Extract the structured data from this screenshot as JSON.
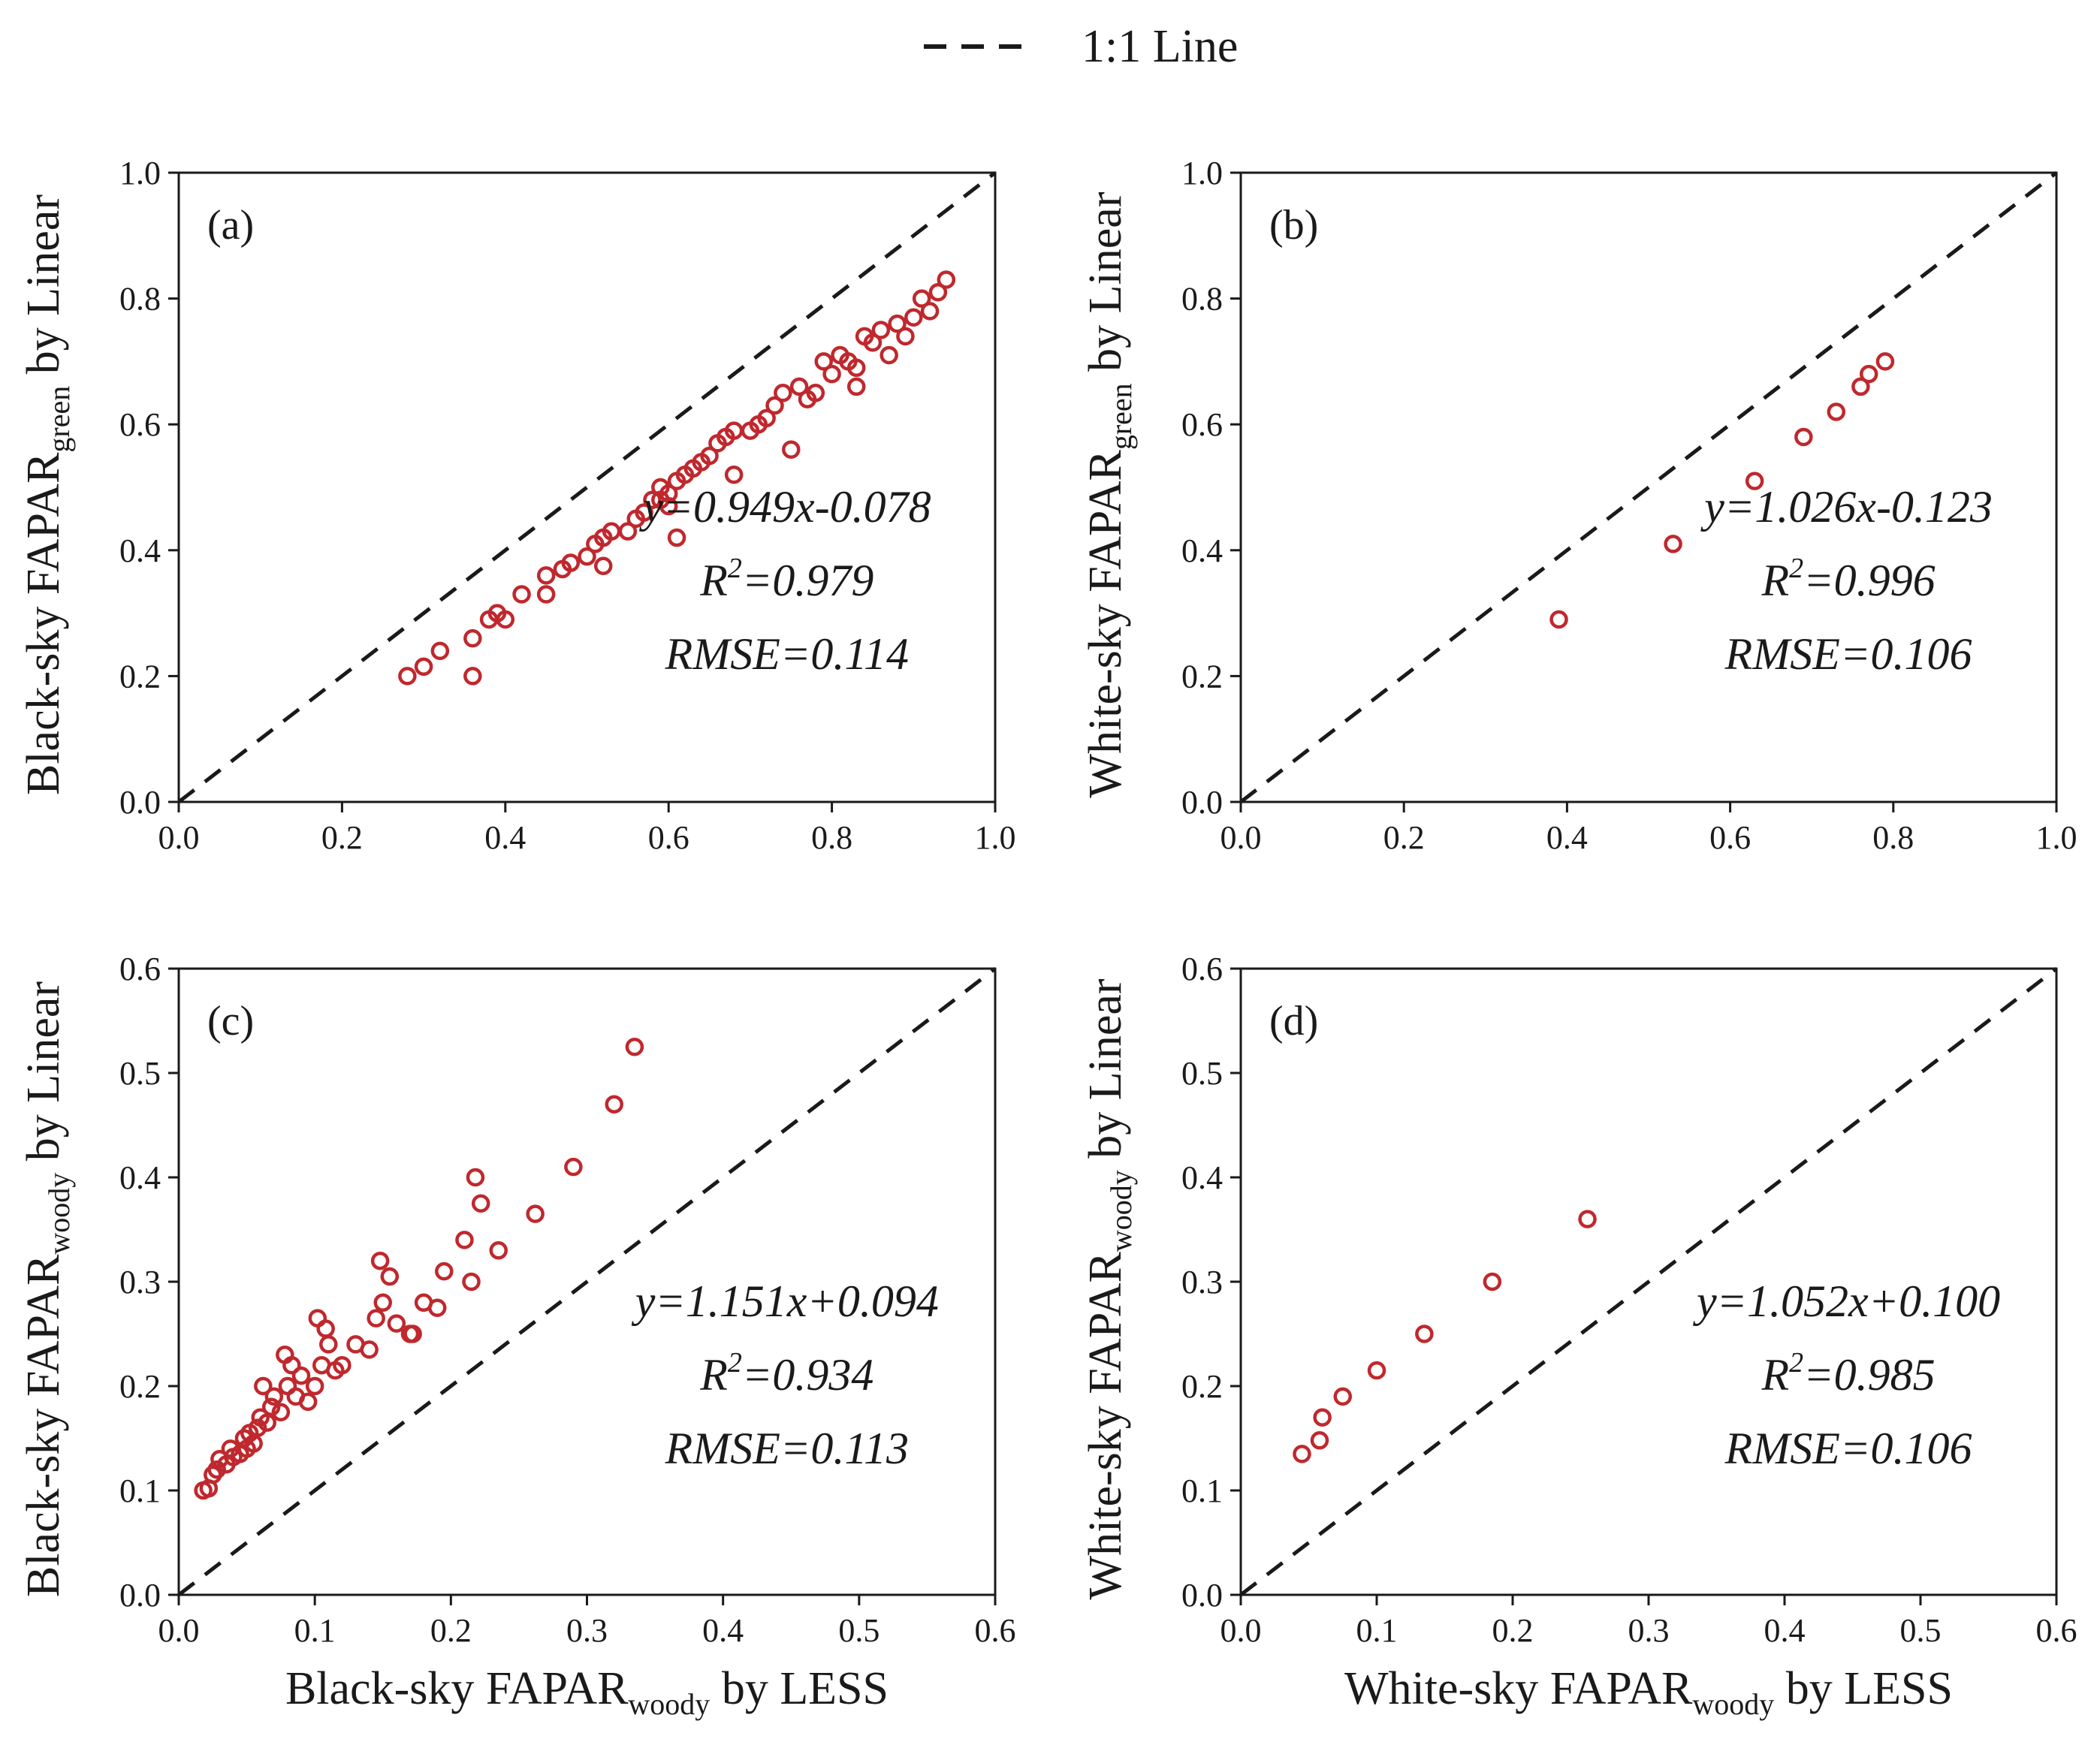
{
  "legend": {
    "label": "1:1 Line"
  },
  "colors": {
    "marker": "#c0282d",
    "identity_line": "#1a1a1a",
    "axis": "#1a1a1a"
  },
  "chart_data": [
    {
      "type": "scatter",
      "panel": "(a)",
      "ylabel": {
        "pre": "Black-sky FAPAR",
        "sub": "green",
        "post": " by Linear"
      },
      "xlabel": null,
      "xlim": [
        0,
        1
      ],
      "ylim": [
        0,
        1
      ],
      "xticks": [
        "0.0",
        "0.2",
        "0.4",
        "0.6",
        "0.8",
        "1.0"
      ],
      "yticks": [
        "0.0",
        "0.2",
        "0.4",
        "0.6",
        "0.8",
        "1.0"
      ],
      "equation": "y=0.949x-0.078",
      "r2": "=0.979",
      "rmse": "RMSE=0.114",
      "points": [
        [
          0.28,
          0.2
        ],
        [
          0.3,
          0.215
        ],
        [
          0.32,
          0.24
        ],
        [
          0.36,
          0.26
        ],
        [
          0.36,
          0.2
        ],
        [
          0.38,
          0.29
        ],
        [
          0.39,
          0.3
        ],
        [
          0.4,
          0.29
        ],
        [
          0.42,
          0.33
        ],
        [
          0.45,
          0.33
        ],
        [
          0.45,
          0.36
        ],
        [
          0.47,
          0.37
        ],
        [
          0.48,
          0.38
        ],
        [
          0.5,
          0.39
        ],
        [
          0.51,
          0.41
        ],
        [
          0.52,
          0.42
        ],
        [
          0.52,
          0.375
        ],
        [
          0.53,
          0.43
        ],
        [
          0.55,
          0.43
        ],
        [
          0.56,
          0.45
        ],
        [
          0.57,
          0.46
        ],
        [
          0.58,
          0.48
        ],
        [
          0.59,
          0.48
        ],
        [
          0.59,
          0.5
        ],
        [
          0.6,
          0.49
        ],
        [
          0.6,
          0.47
        ],
        [
          0.61,
          0.51
        ],
        [
          0.62,
          0.52
        ],
        [
          0.63,
          0.53
        ],
        [
          0.61,
          0.42
        ],
        [
          0.64,
          0.54
        ],
        [
          0.65,
          0.55
        ],
        [
          0.66,
          0.57
        ],
        [
          0.67,
          0.58
        ],
        [
          0.68,
          0.59
        ],
        [
          0.68,
          0.52
        ],
        [
          0.7,
          0.59
        ],
        [
          0.71,
          0.6
        ],
        [
          0.72,
          0.61
        ],
        [
          0.73,
          0.63
        ],
        [
          0.74,
          0.65
        ],
        [
          0.75,
          0.56
        ],
        [
          0.76,
          0.66
        ],
        [
          0.77,
          0.64
        ],
        [
          0.78,
          0.65
        ],
        [
          0.79,
          0.7
        ],
        [
          0.8,
          0.68
        ],
        [
          0.81,
          0.71
        ],
        [
          0.82,
          0.7
        ],
        [
          0.83,
          0.69
        ],
        [
          0.83,
          0.66
        ],
        [
          0.84,
          0.74
        ],
        [
          0.85,
          0.73
        ],
        [
          0.86,
          0.75
        ],
        [
          0.87,
          0.71
        ],
        [
          0.88,
          0.76
        ],
        [
          0.89,
          0.74
        ],
        [
          0.9,
          0.77
        ],
        [
          0.91,
          0.8
        ],
        [
          0.92,
          0.78
        ],
        [
          0.93,
          0.81
        ],
        [
          0.94,
          0.83
        ]
      ]
    },
    {
      "type": "scatter",
      "panel": "(b)",
      "ylabel": {
        "pre": "White-sky FAPAR",
        "sub": "green",
        "post": " by Linear"
      },
      "xlabel": null,
      "xlim": [
        0,
        1
      ],
      "ylim": [
        0,
        1
      ],
      "xticks": [
        "0.0",
        "0.2",
        "0.4",
        "0.6",
        "0.8",
        "1.0"
      ],
      "yticks": [
        "0.0",
        "0.2",
        "0.4",
        "0.6",
        "0.8",
        "1.0"
      ],
      "equation": "y=1.026x-0.123",
      "r2": "=0.996",
      "rmse": "RMSE=0.106",
      "points": [
        [
          0.39,
          0.29
        ],
        [
          0.53,
          0.41
        ],
        [
          0.63,
          0.51
        ],
        [
          0.69,
          0.58
        ],
        [
          0.73,
          0.62
        ],
        [
          0.76,
          0.66
        ],
        [
          0.77,
          0.68
        ],
        [
          0.79,
          0.7
        ]
      ]
    },
    {
      "type": "scatter",
      "panel": "(c)",
      "ylabel": {
        "pre": "Black-sky FAPAR",
        "sub": "woody",
        "post": " by Linear"
      },
      "xlabel": {
        "pre": "Black-sky FAPAR",
        "sub": "woody",
        "post": " by LESS"
      },
      "xlim": [
        0,
        0.6
      ],
      "ylim": [
        0,
        0.6
      ],
      "xticks": [
        "0.0",
        "0.1",
        "0.2",
        "0.3",
        "0.4",
        "0.5",
        "0.6"
      ],
      "yticks": [
        "0.0",
        "0.1",
        "0.2",
        "0.3",
        "0.4",
        "0.5",
        "0.6"
      ],
      "equation": "y=1.151x+0.094",
      "r2": "=0.934",
      "rmse": "RMSE=0.113",
      "points": [
        [
          0.018,
          0.1
        ],
        [
          0.022,
          0.102
        ],
        [
          0.025,
          0.115
        ],
        [
          0.028,
          0.12
        ],
        [
          0.03,
          0.13
        ],
        [
          0.035,
          0.125
        ],
        [
          0.038,
          0.14
        ],
        [
          0.04,
          0.132
        ],
        [
          0.045,
          0.135
        ],
        [
          0.048,
          0.15
        ],
        [
          0.05,
          0.14
        ],
        [
          0.052,
          0.155
        ],
        [
          0.055,
          0.145
        ],
        [
          0.058,
          0.16
        ],
        [
          0.06,
          0.17
        ],
        [
          0.062,
          0.2
        ],
        [
          0.065,
          0.165
        ],
        [
          0.068,
          0.18
        ],
        [
          0.07,
          0.19
        ],
        [
          0.075,
          0.175
        ],
        [
          0.078,
          0.23
        ],
        [
          0.08,
          0.2
        ],
        [
          0.083,
          0.22
        ],
        [
          0.086,
          0.19
        ],
        [
          0.09,
          0.21
        ],
        [
          0.095,
          0.185
        ],
        [
          0.1,
          0.2
        ],
        [
          0.102,
          0.265
        ],
        [
          0.105,
          0.22
        ],
        [
          0.108,
          0.255
        ],
        [
          0.11,
          0.24
        ],
        [
          0.115,
          0.215
        ],
        [
          0.12,
          0.22
        ],
        [
          0.13,
          0.24
        ],
        [
          0.14,
          0.235
        ],
        [
          0.145,
          0.265
        ],
        [
          0.148,
          0.32
        ],
        [
          0.15,
          0.28
        ],
        [
          0.155,
          0.305
        ],
        [
          0.16,
          0.26
        ],
        [
          0.17,
          0.25
        ],
        [
          0.172,
          0.25
        ],
        [
          0.18,
          0.28
        ],
        [
          0.19,
          0.275
        ],
        [
          0.195,
          0.31
        ],
        [
          0.21,
          0.34
        ],
        [
          0.215,
          0.3
        ],
        [
          0.218,
          0.4
        ],
        [
          0.222,
          0.375
        ],
        [
          0.235,
          0.33
        ],
        [
          0.262,
          0.365
        ],
        [
          0.29,
          0.41
        ],
        [
          0.32,
          0.47
        ],
        [
          0.335,
          0.525
        ]
      ]
    },
    {
      "type": "scatter",
      "panel": "(d)",
      "ylabel": {
        "pre": "White-sky FAPAR",
        "sub": "woody",
        "post": " by Linear"
      },
      "xlabel": {
        "pre": "White-sky FAPAR",
        "sub": "woody",
        "post": " by LESS"
      },
      "xlim": [
        0,
        0.6
      ],
      "ylim": [
        0,
        0.6
      ],
      "xticks": [
        "0.0",
        "0.1",
        "0.2",
        "0.3",
        "0.4",
        "0.5",
        "0.6"
      ],
      "yticks": [
        "0.0",
        "0.1",
        "0.2",
        "0.3",
        "0.4",
        "0.5",
        "0.6"
      ],
      "equation": "y=1.052x+0.100",
      "r2": "=0.985",
      "rmse": "RMSE=0.106",
      "points": [
        [
          0.045,
          0.135
        ],
        [
          0.058,
          0.148
        ],
        [
          0.06,
          0.17
        ],
        [
          0.075,
          0.19
        ],
        [
          0.1,
          0.215
        ],
        [
          0.135,
          0.25
        ],
        [
          0.185,
          0.3
        ],
        [
          0.255,
          0.36
        ]
      ]
    }
  ]
}
